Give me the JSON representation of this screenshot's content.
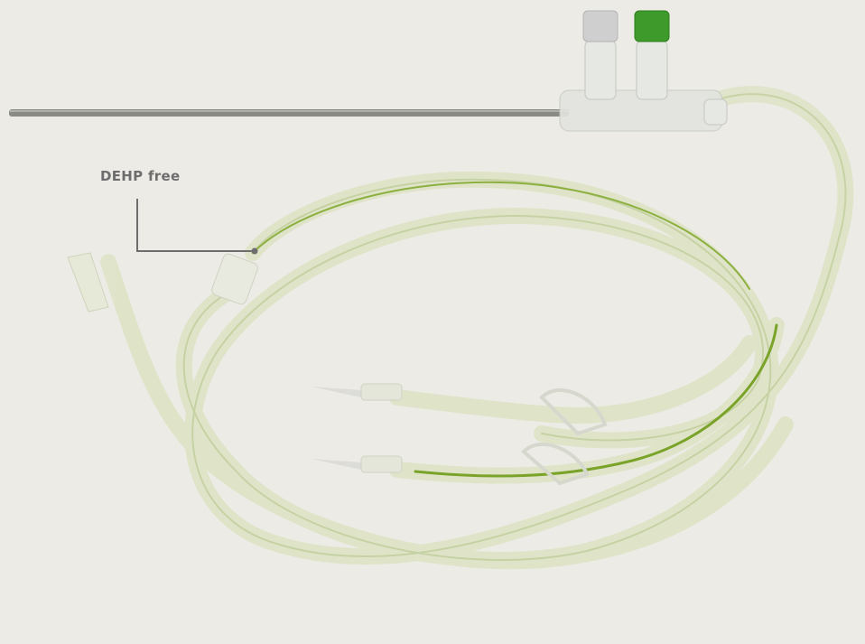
{
  "annotation": {
    "label": "DEHP free"
  }
}
